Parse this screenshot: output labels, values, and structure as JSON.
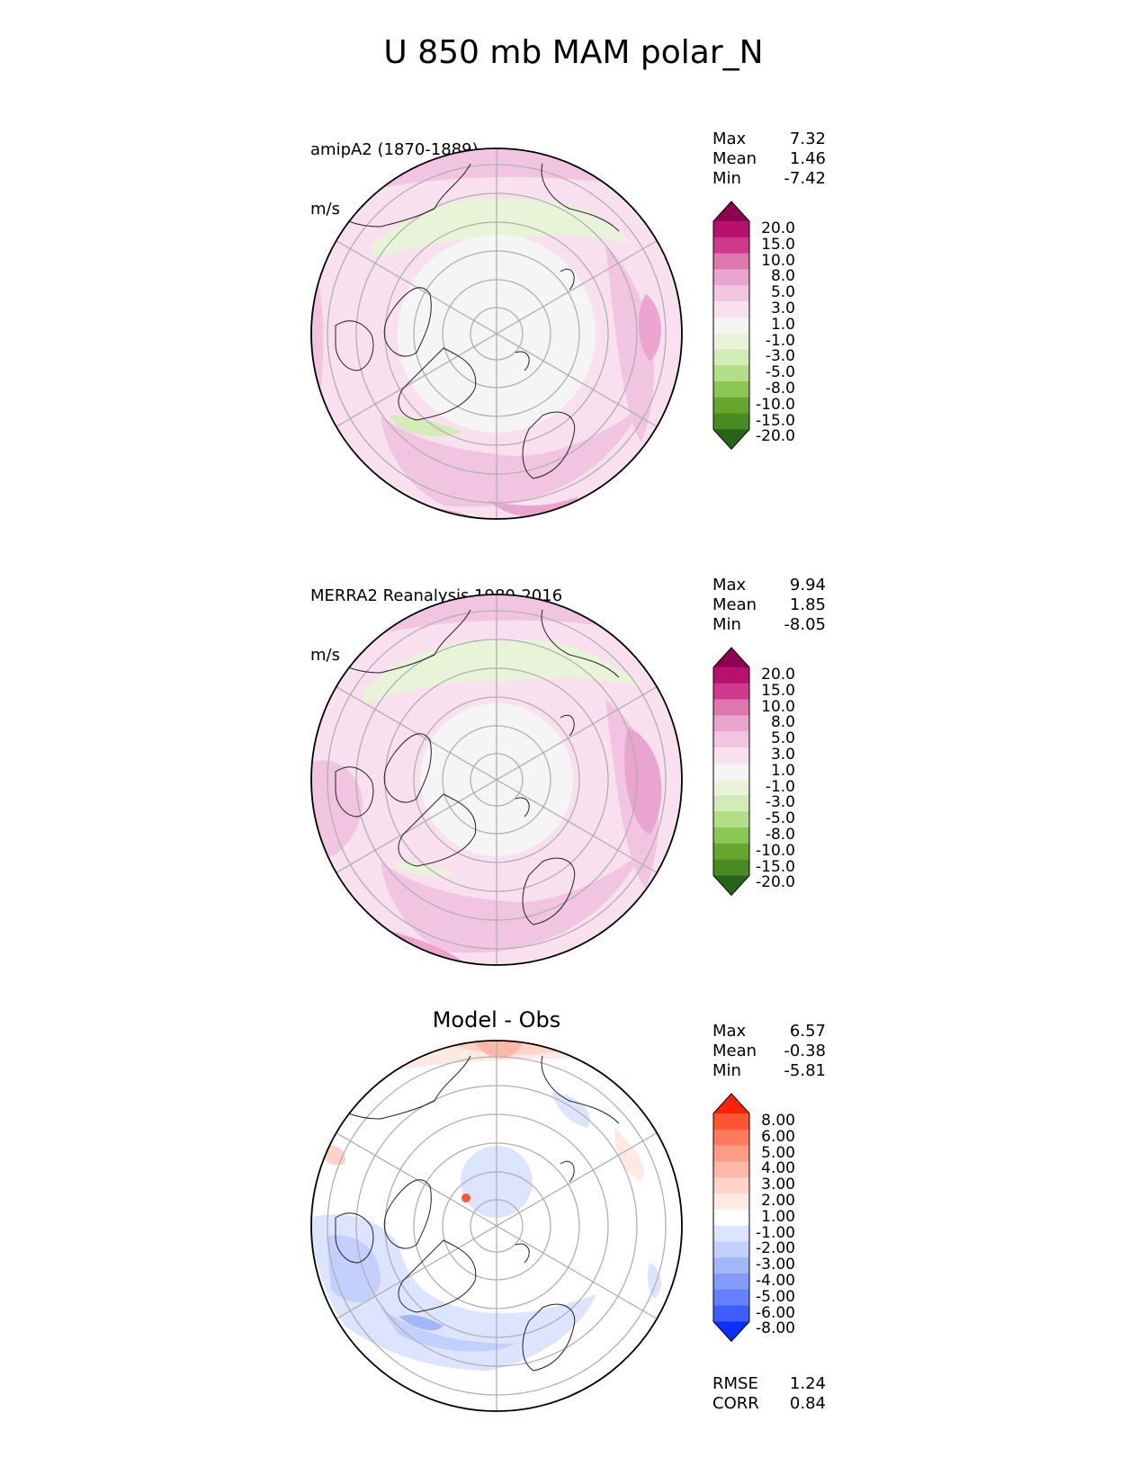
{
  "figure": {
    "title": "U 850 mb MAM polar_N"
  },
  "panels": [
    {
      "id": "model",
      "label_line1": "amipA2 (1870-1889)",
      "label_line2": "m/s",
      "center_title": "",
      "stats": [
        {
          "name": "Max",
          "value": "7.32"
        },
        {
          "name": "Mean",
          "value": "1.46"
        },
        {
          "name": "Min",
          "value": "-7.42"
        }
      ],
      "colorbar": {
        "ticks": [
          "20.0",
          "15.0",
          "10.0",
          "8.0",
          "5.0",
          "3.0",
          "1.0",
          "-1.0",
          "-3.0",
          "-5.0",
          "-8.0",
          "-10.0",
          "-15.0",
          "-20.0"
        ],
        "colors": [
          "#8e0152",
          "#b8106f",
          "#d0388b",
          "#de77ae",
          "#eaa5cf",
          "#f1c5e2",
          "#f8e0ef",
          "#f5f5f5",
          "#e8f3d8",
          "#d3ebb6",
          "#b4dd88",
          "#8cc653",
          "#66a62c",
          "#4a8a23",
          "#276419"
        ]
      }
    },
    {
      "id": "obs",
      "label_line1": "MERRA2 Reanalysis 1980-2016",
      "label_line2": "m/s",
      "center_title": "",
      "stats": [
        {
          "name": "Max",
          "value": "9.94"
        },
        {
          "name": "Mean",
          "value": "1.85"
        },
        {
          "name": "Min",
          "value": "-8.05"
        }
      ],
      "colorbar": {
        "ticks": [
          "20.0",
          "15.0",
          "10.0",
          "8.0",
          "5.0",
          "3.0",
          "1.0",
          "-1.0",
          "-3.0",
          "-5.0",
          "-8.0",
          "-10.0",
          "-15.0",
          "-20.0"
        ],
        "colors": [
          "#8e0152",
          "#b8106f",
          "#d0388b",
          "#de77ae",
          "#eaa5cf",
          "#f1c5e2",
          "#f8e0ef",
          "#f5f5f5",
          "#e8f3d8",
          "#d3ebb6",
          "#b4dd88",
          "#8cc653",
          "#66a62c",
          "#4a8a23",
          "#276419"
        ]
      }
    },
    {
      "id": "diff",
      "label_line1": "",
      "label_line2": "",
      "center_title": "Model - Obs",
      "stats": [
        {
          "name": "Max",
          "value": "6.57"
        },
        {
          "name": "Mean",
          "value": "-0.38"
        },
        {
          "name": "Min",
          "value": "-5.81"
        }
      ],
      "extra_stats": [
        {
          "name": "RMSE",
          "value": "1.24"
        },
        {
          "name": "CORR",
          "value": "0.84"
        }
      ],
      "colorbar": {
        "ticks": [
          "8.00",
          "6.00",
          "5.00",
          "4.00",
          "3.00",
          "2.00",
          "1.00",
          "-1.00",
          "-2.00",
          "-3.00",
          "-4.00",
          "-5.00",
          "-6.00",
          "-8.00"
        ],
        "colors": [
          "#ff2200",
          "#ff5533",
          "#ff7a5c",
          "#ff9b85",
          "#ffb8a8",
          "#ffd3c8",
          "#ffe9e3",
          "#ffffff",
          "#dde4ff",
          "#c3cffc",
          "#a4b6fb",
          "#849bfa",
          "#6580fb",
          "#3f5dfc",
          "#0c2ffb"
        ]
      }
    }
  ]
}
